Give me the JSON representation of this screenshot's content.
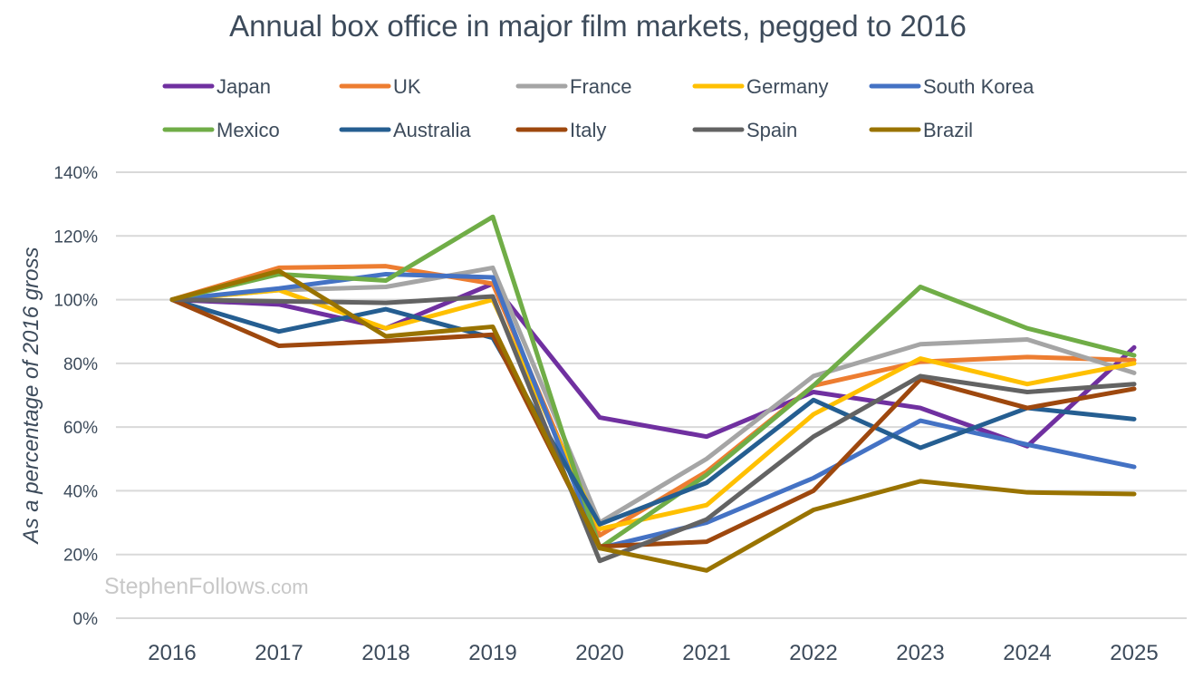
{
  "chart_data": {
    "type": "line",
    "title": "Annual box office in major film markets, pegged to 2016",
    "xlabel": "",
    "ylabel": "As a percentage of 2016 gross",
    "watermark": {
      "main": "StephenFollows",
      "suffix": ".com"
    },
    "ylim": [
      0,
      140
    ],
    "yticks": [
      0,
      20,
      40,
      60,
      80,
      100,
      120,
      140
    ],
    "ytick_labels": [
      "0%",
      "20%",
      "40%",
      "60%",
      "80%",
      "100%",
      "120%",
      "140%"
    ],
    "grid": true,
    "legend_position": "top",
    "x": [
      "2016",
      "2017",
      "2018",
      "2019",
      "2020",
      "2021",
      "2022",
      "2023",
      "2024",
      "2025"
    ],
    "series": [
      {
        "name": "Japan",
        "color": "#7030a0",
        "values": [
          100,
          98.5,
          91,
          105,
          63,
          57,
          71,
          66,
          54,
          85
        ]
      },
      {
        "name": "UK",
        "color": "#ed7d31",
        "values": [
          100,
          110,
          110.5,
          105,
          26,
          46,
          73,
          80.5,
          82,
          81
        ]
      },
      {
        "name": "France",
        "color": "#a5a5a5",
        "values": [
          100,
          103,
          104,
          110,
          30,
          50,
          76,
          86,
          87.5,
          77
        ]
      },
      {
        "name": "Germany",
        "color": "#ffc000",
        "values": [
          100,
          103,
          91,
          100,
          28,
          35.5,
          64,
          81.5,
          73.5,
          80
        ]
      },
      {
        "name": "South Korea",
        "color": "#4472c4",
        "values": [
          100,
          103.5,
          108,
          107,
          22,
          30,
          44,
          62,
          54.5,
          47.5
        ]
      },
      {
        "name": "Mexico",
        "color": "#70ad47",
        "values": [
          100,
          108,
          106,
          126,
          22,
          45,
          73,
          104,
          91,
          82.5
        ]
      },
      {
        "name": "Australia",
        "color": "#255e91",
        "values": [
          100,
          90,
          97,
          88,
          29.5,
          42.5,
          68.5,
          53.5,
          66,
          62.5
        ]
      },
      {
        "name": "Italy",
        "color": "#9e480e",
        "values": [
          100,
          85.5,
          87,
          89,
          22.5,
          24,
          40,
          75,
          66,
          72
        ]
      },
      {
        "name": "Spain",
        "color": "#636363",
        "values": [
          100,
          99.5,
          99,
          101,
          18,
          31,
          57,
          76,
          71,
          73.5
        ]
      },
      {
        "name": "Brazil",
        "color": "#997300",
        "values": [
          100,
          109,
          88.5,
          91.5,
          22,
          15,
          34,
          43,
          39.5,
          39
        ]
      }
    ]
  }
}
